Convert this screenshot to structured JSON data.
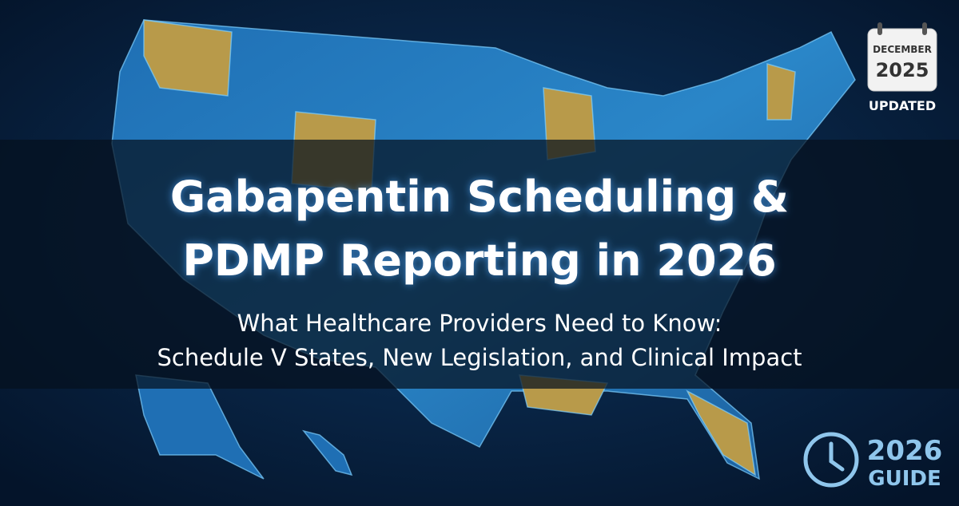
{
  "banner": {
    "title": [
      "Gabapentin Scheduling &",
      "PDMP Reporting in 2026"
    ],
    "subtitle": [
      "What Healthcare Providers Need to Know:",
      "Schedule V States, New Legislation, and Clinical Impact"
    ],
    "calendar": {
      "month": "DECEMBER",
      "year": "2025",
      "status": "UPDATED"
    },
    "guide": {
      "year": "2026",
      "label": "GUIDE"
    }
  }
}
